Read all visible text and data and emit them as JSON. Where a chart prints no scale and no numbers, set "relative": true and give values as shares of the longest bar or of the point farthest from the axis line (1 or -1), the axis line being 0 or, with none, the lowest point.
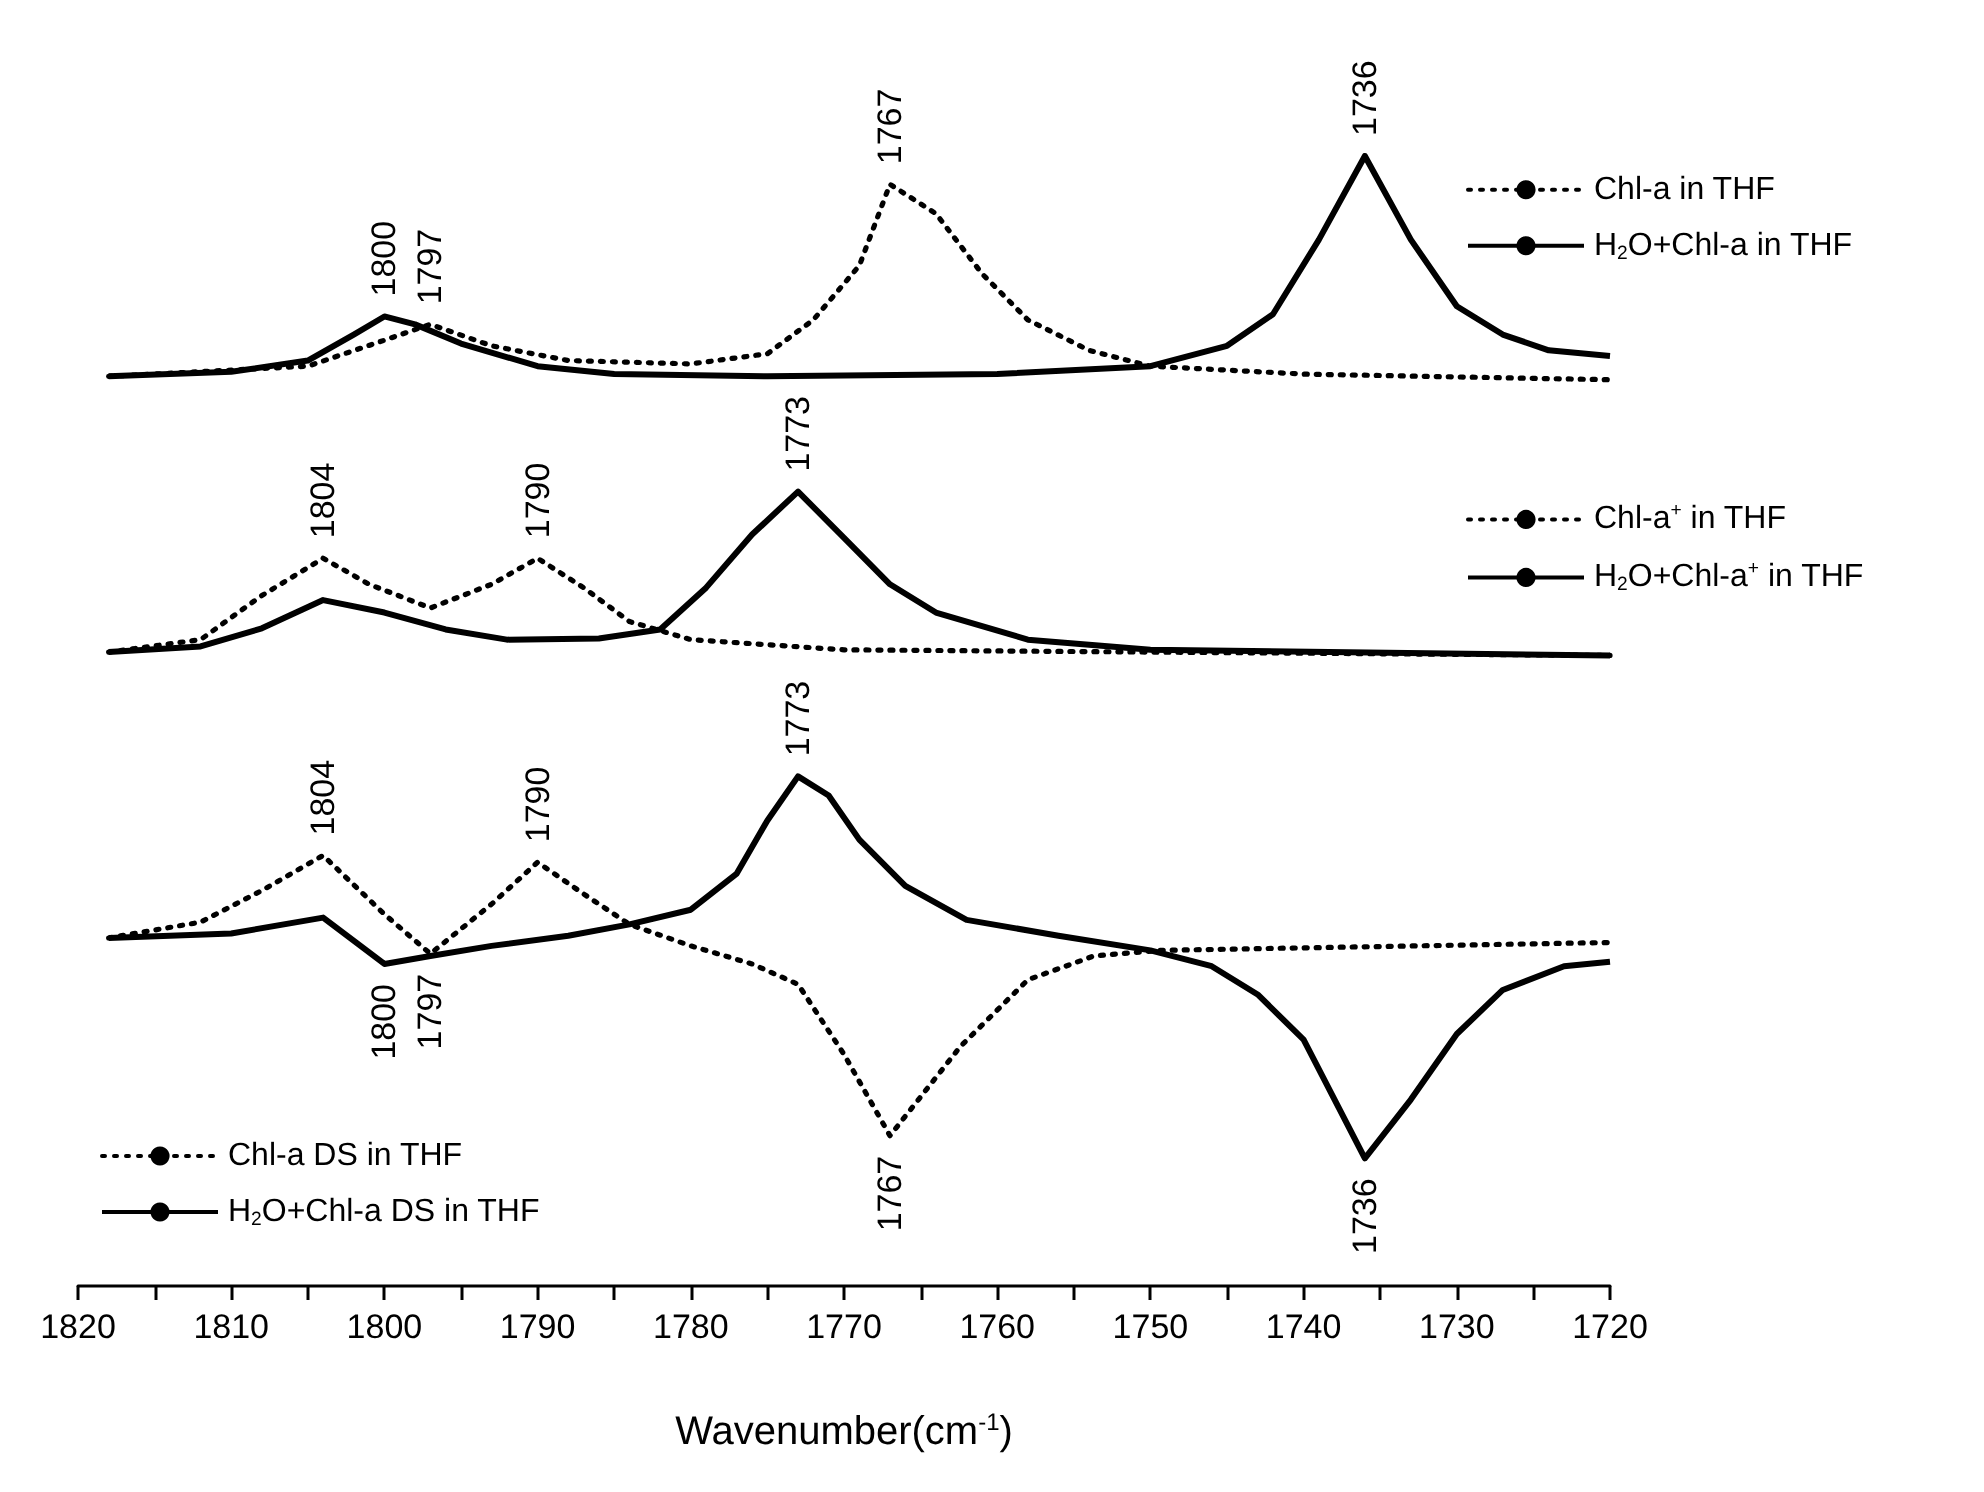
{
  "chart_data": {
    "type": "line",
    "relative": true,
    "xlabel": "Wavenumber(cm$^{-1}$)",
    "xlim": [
      1820,
      1720
    ],
    "xticks": [
      1820,
      {
        "value": 1815,
        "label": null
      },
      1810,
      {
        "value": 1805,
        "label": null
      },
      1800,
      {
        "value": 1795,
        "label": null
      },
      1790,
      {
        "value": 1785,
        "label": null
      },
      1780,
      {
        "value": 1775,
        "label": null
      },
      1770,
      {
        "value": 1765,
        "label": null
      },
      1760,
      {
        "value": 1755,
        "label": null
      },
      1750,
      {
        "value": 1745,
        "label": null
      },
      1740,
      {
        "value": 1735,
        "label": null
      },
      1730,
      {
        "value": 1725,
        "label": null
      },
      1720
    ],
    "legend": "right",
    "marker": "none",
    "grid": false,
    "series": [
      {
        "name": "Chl-a in THF",
        "color": "#000000",
        "line_style": "dotted",
        "x": [
          1818,
          1805,
          1800,
          1797,
          1793,
          1788,
          1780,
          1775,
          1772,
          1769,
          1767,
          1764,
          1761,
          1758,
          1754,
          1750,
          1740,
          1720
        ],
        "values": [
          0.805,
          0.814,
          0.837,
          0.851,
          0.832,
          0.819,
          0.816,
          0.825,
          0.855,
          0.903,
          0.975,
          0.949,
          0.896,
          0.855,
          0.828,
          0.814,
          0.807,
          0.802
        ]
      },
      {
        "name": "H$_{2}$O+Chl-a in THF",
        "color": "#000000",
        "line_style": "solid",
        "x": [
          1818,
          1810,
          1805,
          1802,
          1800,
          1798,
          1795,
          1790,
          1785,
          1775,
          1760,
          1750,
          1745,
          1742,
          1739,
          1736,
          1733,
          1730,
          1727,
          1724,
          1720
        ],
        "values": [
          0.805,
          0.809,
          0.819,
          0.842,
          0.858,
          0.851,
          0.834,
          0.814,
          0.807,
          0.805,
          0.807,
          0.814,
          0.832,
          0.86,
          0.926,
          1.0,
          0.926,
          0.867,
          0.842,
          0.828,
          0.823
        ]
      },
      {
        "name": "Chl-a$^{+}$ in THF",
        "color": "#000000",
        "line_style": "dotted",
        "x": [
          1818,
          1812,
          1808,
          1804,
          1801,
          1797,
          1793,
          1790,
          1787,
          1784,
          1780,
          1770,
          1720
        ],
        "values": [
          0.561,
          0.572,
          0.611,
          0.644,
          0.621,
          0.6,
          0.621,
          0.644,
          0.618,
          0.588,
          0.572,
          0.563,
          0.558
        ]
      },
      {
        "name": "H$_{2}$O+Chl-a$^{+}$ in THF",
        "color": "#000000",
        "line_style": "solid",
        "x": [
          1818,
          1812,
          1808,
          1804,
          1800,
          1796,
          1792,
          1786,
          1782,
          1779,
          1776,
          1773,
          1770,
          1767,
          1764,
          1758,
          1750,
          1720
        ],
        "values": [
          0.561,
          0.566,
          0.582,
          0.607,
          0.596,
          0.581,
          0.572,
          0.573,
          0.581,
          0.618,
          0.665,
          0.703,
          0.662,
          0.621,
          0.596,
          0.572,
          0.563,
          0.558
        ]
      },
      {
        "name": "Chl-a DS in THF",
        "color": "#000000",
        "line_style": "dotted",
        "x": [
          1818,
          1812,
          1808,
          1804,
          1800,
          1797,
          1793,
          1790,
          1787,
          1784,
          1780,
          1776,
          1773,
          1770,
          1767,
          1762.4,
          1758,
          1753.7,
          1749.4,
          1720
        ],
        "values": [
          0.308,
          0.322,
          0.35,
          0.381,
          0.329,
          0.294,
          0.338,
          0.375,
          0.347,
          0.32,
          0.301,
          0.285,
          0.267,
          0.205,
          0.133,
          0.212,
          0.271,
          0.292,
          0.297,
          0.304
        ]
      },
      {
        "name": "H$_{2}$O+Chl-a DS in THF",
        "color": "#000000",
        "line_style": "solid",
        "x": [
          1818,
          1810,
          1804,
          1800,
          1797,
          1793,
          1788,
          1784,
          1780,
          1777,
          1775,
          1773,
          1771,
          1769,
          1766,
          1762,
          1756,
          1750,
          1746,
          1743,
          1740,
          1736,
          1733,
          1730,
          1727,
          1723,
          1720
        ],
        "values": [
          0.308,
          0.312,
          0.326,
          0.285,
          0.292,
          0.301,
          0.31,
          0.32,
          0.333,
          0.365,
          0.412,
          0.451,
          0.434,
          0.395,
          0.354,
          0.324,
          0.31,
          0.297,
          0.283,
          0.258,
          0.218,
          0.113,
          0.165,
          0.223,
          0.262,
          0.283,
          0.287
        ]
      }
    ],
    "annotations": [
      {
        "text": "1800",
        "x": 1800,
        "y": 0.858
      },
      {
        "text": "1797",
        "x": 1797,
        "y": 0.851
      },
      {
        "text": "1767",
        "x": 1767,
        "y": 0.975
      },
      {
        "text": "1736",
        "x": 1736,
        "y": 1.0
      },
      {
        "text": "1804",
        "x": 1804,
        "y": 0.644
      },
      {
        "text": "1790",
        "x": 1790,
        "y": 0.644
      },
      {
        "text": "1773",
        "x": 1773,
        "y": 0.703
      },
      {
        "text": "1804",
        "x": 1804,
        "y": 0.381
      },
      {
        "text": "1790",
        "x": 1790,
        "y": 0.375
      },
      {
        "text": "1773",
        "x": 1773,
        "y": 0.451
      },
      {
        "text": "1800",
        "x": 1800,
        "y": 0.285
      },
      {
        "text": "1797",
        "x": 1797,
        "y": 0.294
      },
      {
        "text": "1767",
        "x": 1767,
        "y": 0.133
      },
      {
        "text": "1736",
        "x": 1736,
        "y": 0.113
      }
    ]
  }
}
